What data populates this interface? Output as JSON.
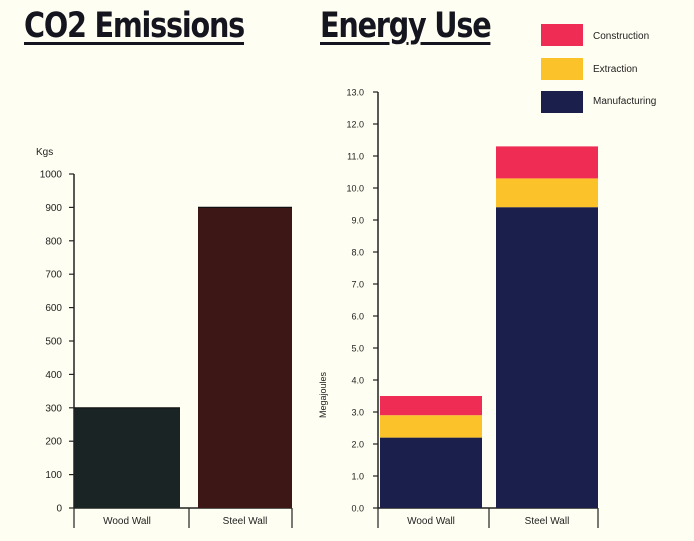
{
  "titles": {
    "co2": "CO2 Emissions",
    "energy": "Energy Use"
  },
  "chart_data": [
    {
      "type": "bar",
      "title": "CO2 Emissions",
      "ylabel": "Kgs",
      "xlabel": "",
      "ylim": [
        0,
        1000
      ],
      "yticks": [
        "0",
        "100",
        "200",
        "300",
        "400",
        "500",
        "600",
        "700",
        "800",
        "900",
        "1000"
      ],
      "categories": [
        "Wood Wall",
        "Steel Wall"
      ],
      "values": [
        300,
        900
      ],
      "colors": [
        "#1a2424",
        "#3d1616"
      ],
      "grid": false
    },
    {
      "type": "bar",
      "stacked": true,
      "title": "Energy Use",
      "ylabel": "Megajoules",
      "xlabel": "",
      "ylim": [
        0,
        13
      ],
      "yticks": [
        "0.0",
        "1.0",
        "2.0",
        "3.0",
        "4.0",
        "5.0",
        "6.0",
        "7.0",
        "8.0",
        "9.0",
        "10.0",
        "11.0",
        "12.0",
        "13.0"
      ],
      "categories": [
        "Wood Wall",
        "Steel Wall"
      ],
      "series": [
        {
          "name": "Manufacturing",
          "values": [
            2.2,
            9.4
          ],
          "color": "#1b1f4c"
        },
        {
          "name": "Extraction",
          "values": [
            0.7,
            0.9
          ],
          "color": "#fbc22a"
        },
        {
          "name": "Construction",
          "values": [
            0.6,
            1.0
          ],
          "color": "#ee2c54"
        }
      ],
      "legend_position": "top-right",
      "grid": false
    }
  ]
}
